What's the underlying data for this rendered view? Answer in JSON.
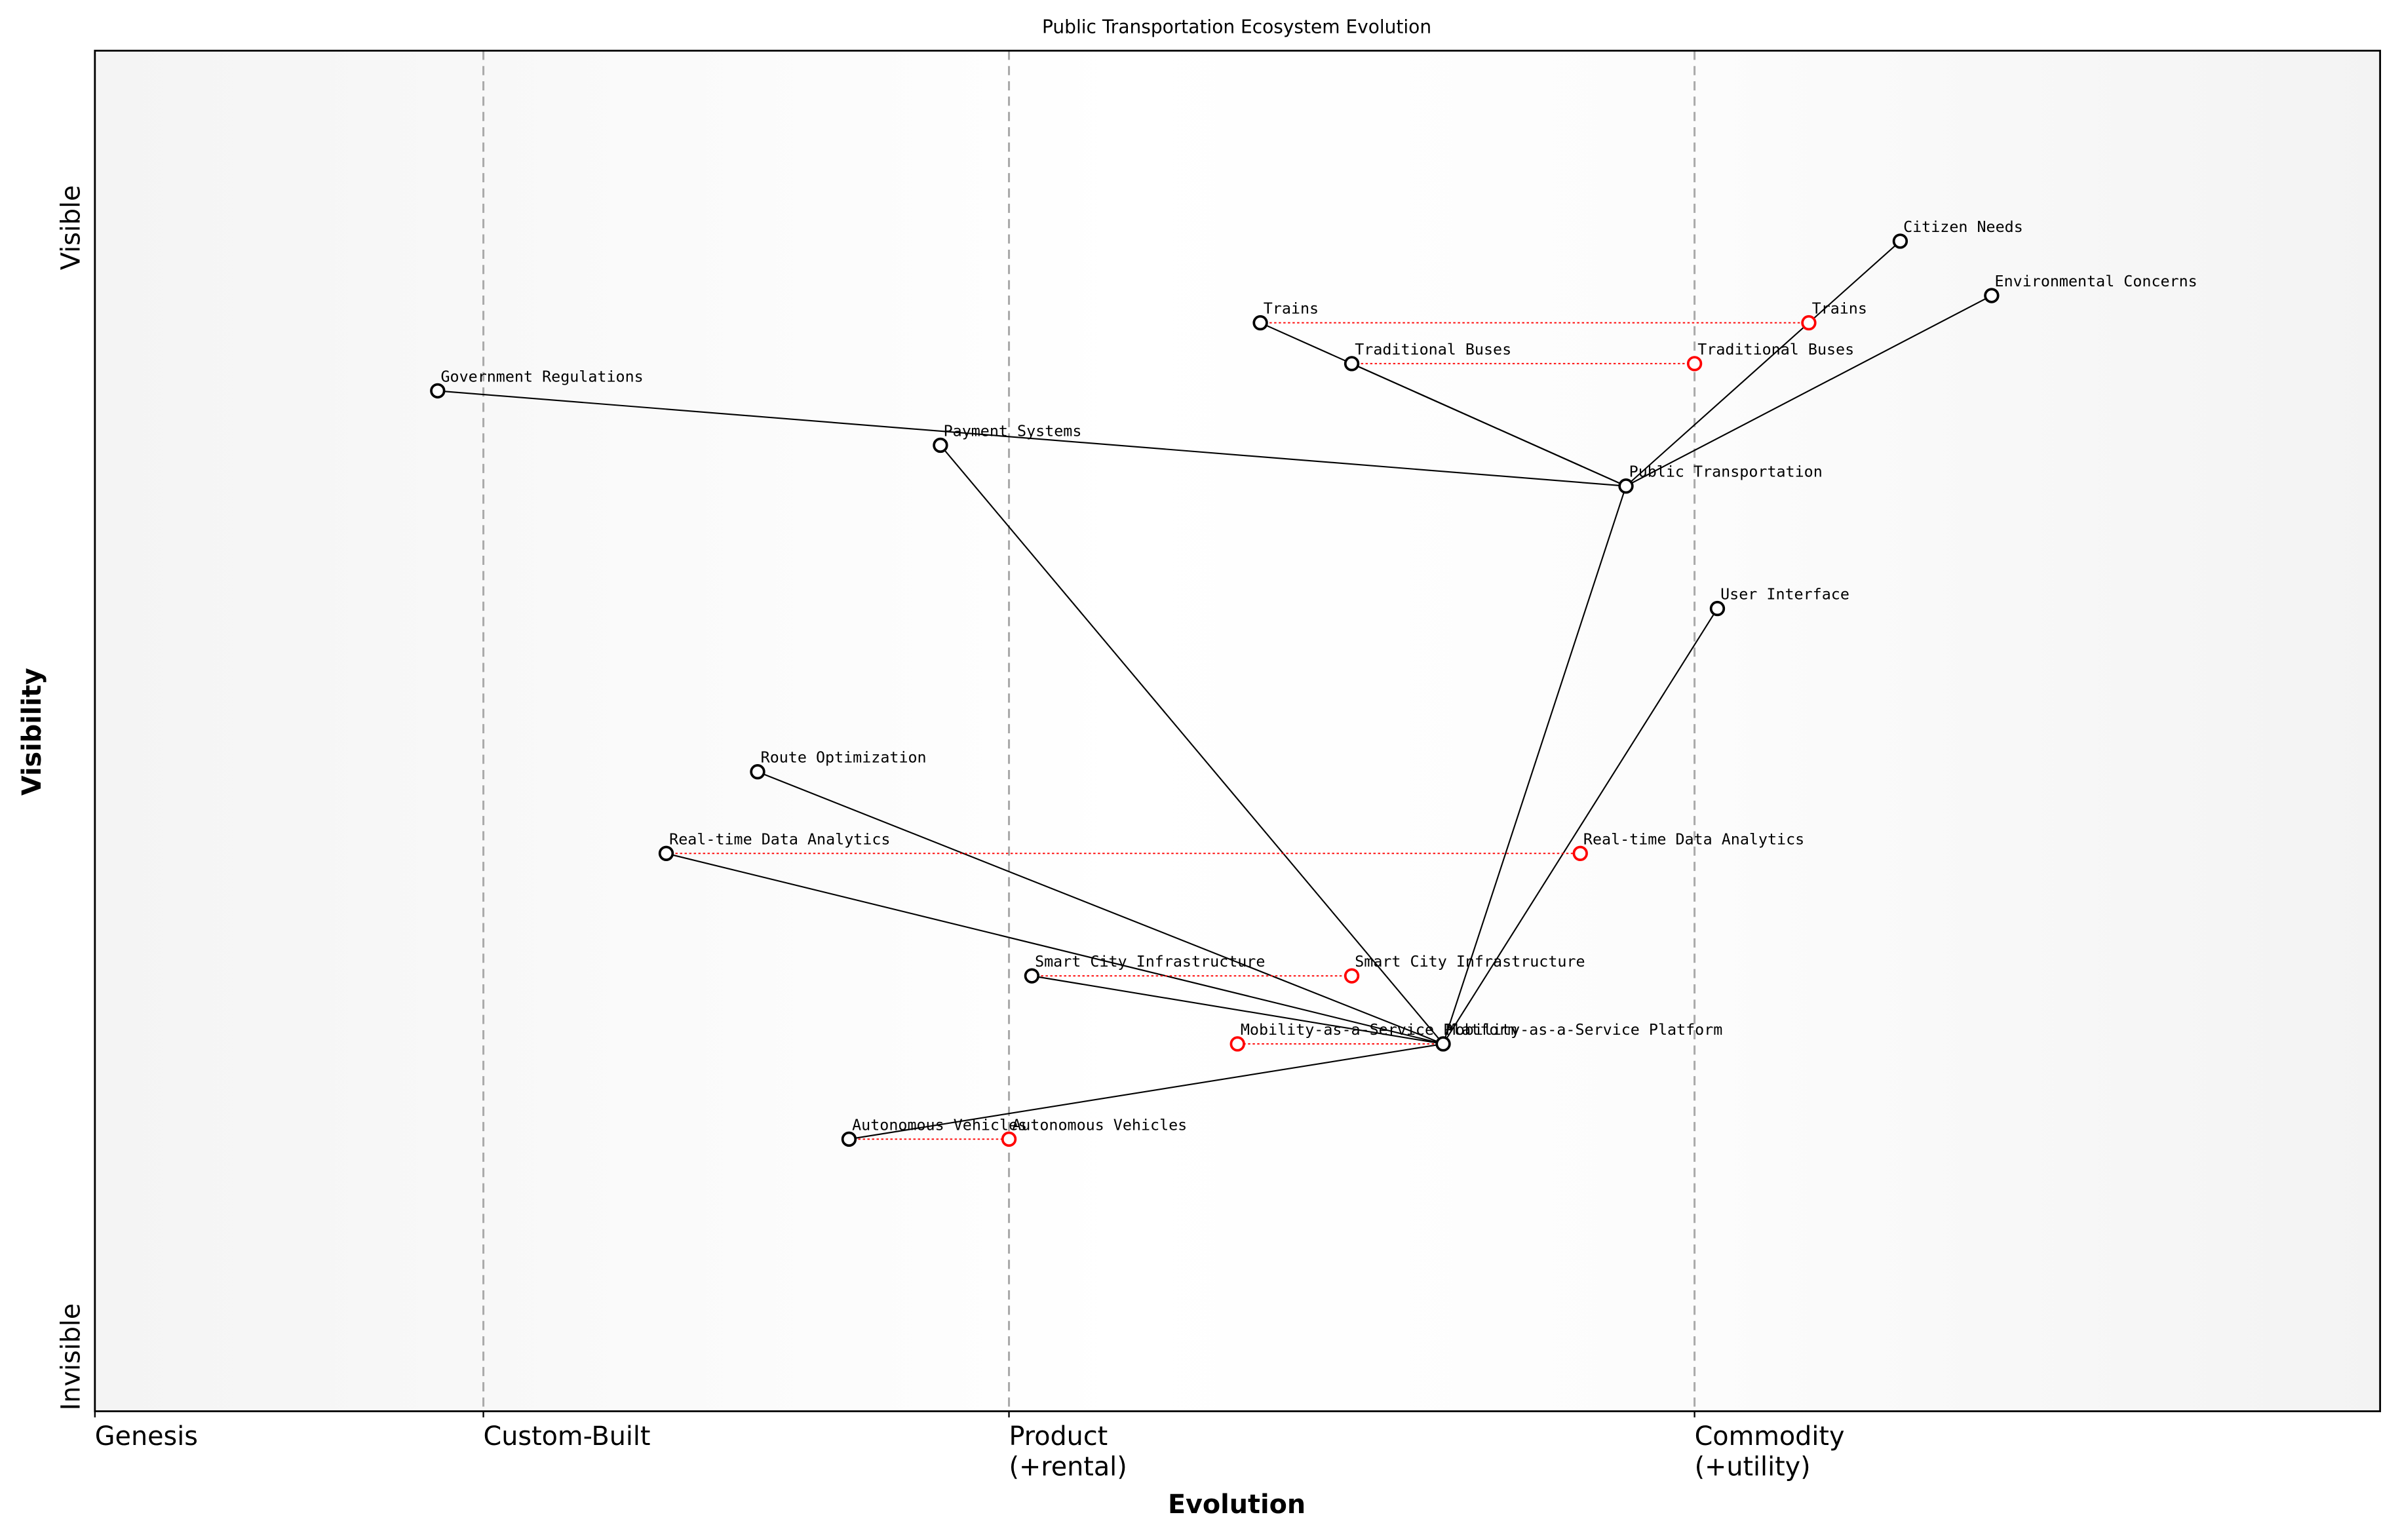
{
  "chart_data": {
    "type": "wardley",
    "title": "Public Transportation Ecosystem Evolution",
    "xlabel": "Evolution",
    "ylabel": "Visibility",
    "xlim": [
      0,
      1
    ],
    "ylim": [
      0,
      1
    ],
    "xticks": [
      {
        "value": 0,
        "label": "Genesis"
      },
      {
        "value": 0.17,
        "label": "Custom-Built"
      },
      {
        "value": 0.4,
        "label": "Product\n(+rental)"
      },
      {
        "value": 0.7,
        "label": "Commodity\n(+utility)"
      }
    ],
    "yticks": [
      {
        "value": 0.04,
        "label": "Invisible"
      },
      {
        "value": 0.87,
        "label": "Visible"
      }
    ],
    "grid": true,
    "components": [
      {
        "name": "Citizen Needs",
        "x": 0.79,
        "y": 0.86
      },
      {
        "name": "Environmental Concerns",
        "x": 0.83,
        "y": 0.82
      },
      {
        "name": "Trains",
        "x": 0.51,
        "y": 0.8,
        "evolve": 0.75
      },
      {
        "name": "Traditional Buses",
        "x": 0.55,
        "y": 0.77,
        "evolve": 0.7
      },
      {
        "name": "Government Regulations",
        "x": 0.15,
        "y": 0.75
      },
      {
        "name": "Payment Systems",
        "x": 0.37,
        "y": 0.71
      },
      {
        "name": "Public Transportation",
        "x": 0.67,
        "y": 0.68
      },
      {
        "name": "User Interface",
        "x": 0.71,
        "y": 0.59
      },
      {
        "name": "Route Optimization",
        "x": 0.29,
        "y": 0.47
      },
      {
        "name": "Real-time Data Analytics",
        "x": 0.25,
        "y": 0.41,
        "evolve": 0.65
      },
      {
        "name": "Smart City Infrastructure",
        "x": 0.41,
        "y": 0.32,
        "evolve": 0.55
      },
      {
        "name": "Mobility-as-a-Service Platform",
        "x": 0.59,
        "y": 0.27,
        "evolve": 0.5
      },
      {
        "name": "Autonomous Vehicles",
        "x": 0.33,
        "y": 0.2,
        "evolve": 0.4
      }
    ],
    "links": [
      [
        "Citizen Needs",
        "Public Transportation"
      ],
      [
        "Environmental Concerns",
        "Public Transportation"
      ],
      [
        "Public Transportation",
        "Trains"
      ],
      [
        "Public Transportation",
        "Traditional Buses"
      ],
      [
        "Government Regulations",
        "Public Transportation"
      ],
      [
        "Public Transportation",
        "Mobility-as-a-Service Platform"
      ],
      [
        "Payment Systems",
        "Mobility-as-a-Service Platform"
      ],
      [
        "User Interface",
        "Mobility-as-a-Service Platform"
      ],
      [
        "Route Optimization",
        "Mobility-as-a-Service Platform"
      ],
      [
        "Real-time Data Analytics",
        "Mobility-as-a-Service Platform"
      ],
      [
        "Smart City Infrastructure",
        "Mobility-as-a-Service Platform"
      ],
      [
        "Autonomous Vehicles",
        "Mobility-as-a-Service Platform"
      ]
    ]
  }
}
